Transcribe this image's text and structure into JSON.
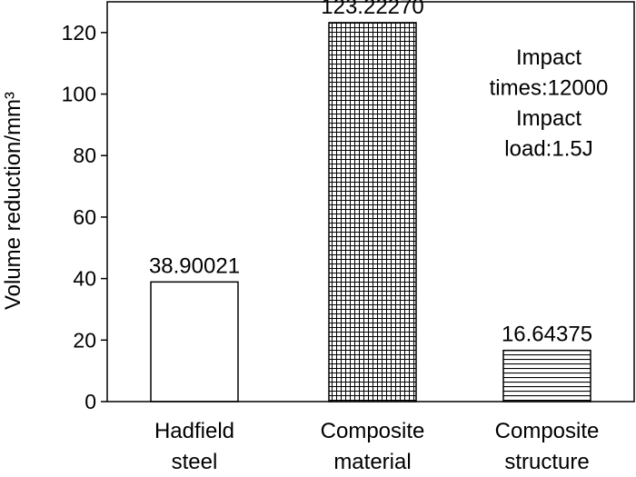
{
  "chart_data": {
    "type": "bar",
    "categories": [
      [
        "Hadfield",
        "steel"
      ],
      [
        "Composite",
        "material"
      ],
      [
        "Composite",
        "structure"
      ]
    ],
    "values": [
      38.90021,
      123.2227,
      16.64375
    ],
    "value_labels": [
      "38.90021",
      "123.22270",
      "16.64375"
    ],
    "bar_patterns": [
      "none",
      "grid",
      "horizontal-lines"
    ],
    "ylabel": "Volume reduction/mm³",
    "ylim": [
      0,
      130
    ],
    "yticks": [
      0,
      20,
      40,
      60,
      80,
      100,
      120
    ],
    "annotation": [
      "Impact",
      "times:12000",
      "Impact",
      "load:1.5J"
    ],
    "grid": false,
    "legend": "none"
  }
}
